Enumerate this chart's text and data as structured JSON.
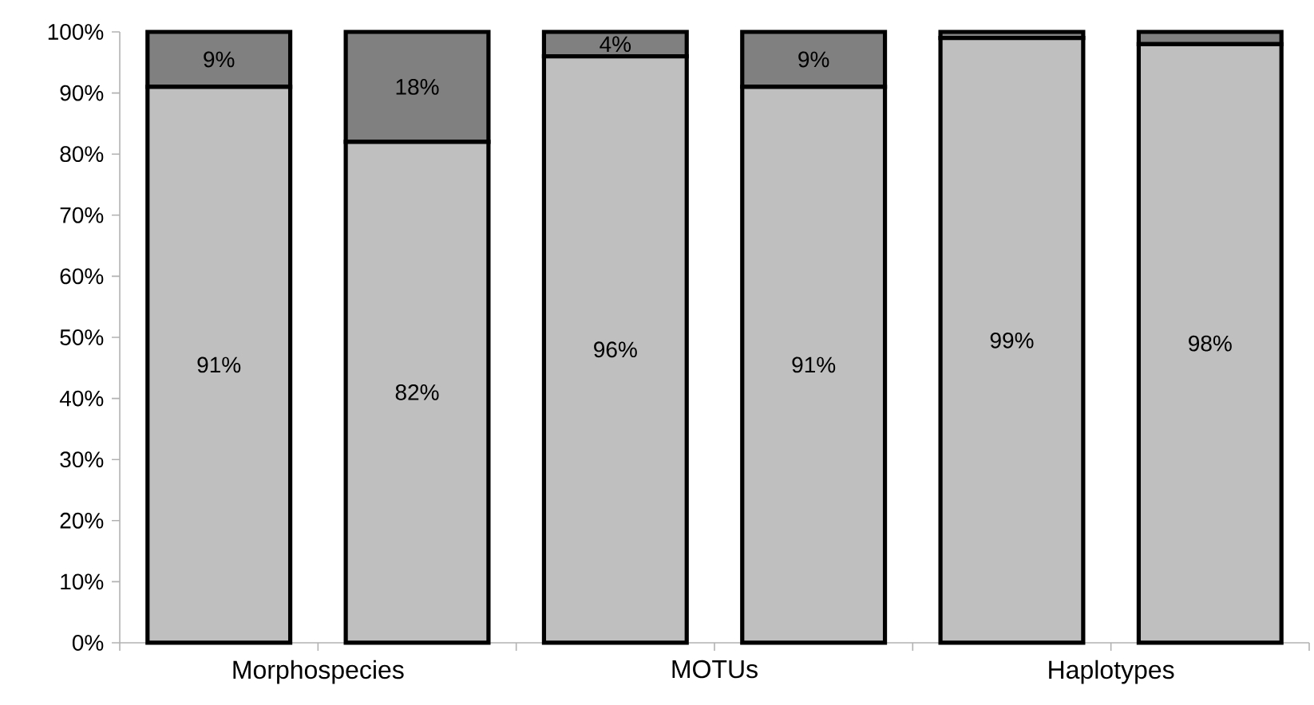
{
  "chart_data": {
    "type": "bar",
    "stacked": true,
    "categories": [
      null,
      null,
      null,
      null,
      null,
      null
    ],
    "series": [
      {
        "color": "#bfbfbf",
        "values": [
          91,
          82,
          96,
          91,
          99,
          98
        ],
        "value_labels": [
          "91%",
          "82%",
          "96%",
          "91%",
          "99%",
          "98%"
        ]
      },
      {
        "color": "#808080",
        "values": [
          9,
          18,
          4,
          9,
          1,
          2
        ],
        "value_labels": [
          "9%",
          "18%",
          "4%",
          "9%",
          null,
          null
        ]
      }
    ],
    "ylim": [
      0,
      100
    ],
    "yticks": [
      {
        "value": 0,
        "label": "0%"
      },
      {
        "value": 10,
        "label": "10%"
      },
      {
        "value": 20,
        "label": "20%"
      },
      {
        "value": 30,
        "label": "30%"
      },
      {
        "value": 40,
        "label": "40%"
      },
      {
        "value": 50,
        "label": "50%"
      },
      {
        "value": 60,
        "label": "60%"
      },
      {
        "value": 70,
        "label": "70%"
      },
      {
        "value": 80,
        "label": "80%"
      },
      {
        "value": 90,
        "label": "90%"
      },
      {
        "value": 100,
        "label": "100%"
      }
    ],
    "annotations": [
      "Morphospecies",
      "MOTUs",
      "Haplotypes"
    ],
    "grid": false
  }
}
